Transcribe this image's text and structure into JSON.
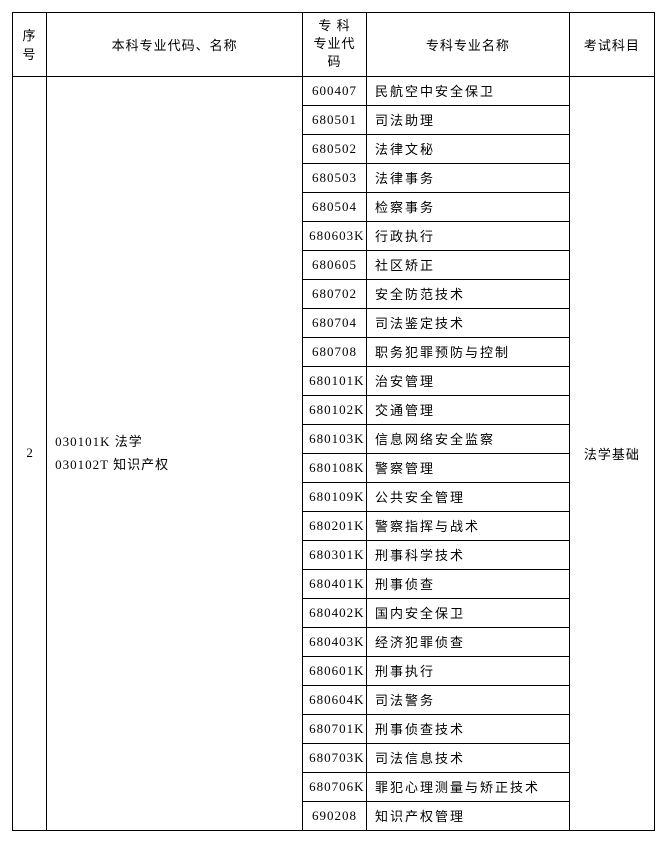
{
  "headers": {
    "seq": "序号",
    "major": "本科专业代码、名称",
    "code": "专 科\n专业代码",
    "name": "专科专业名称",
    "exam": "考试科目"
  },
  "group": {
    "seq": "2",
    "major": "030101K 法学\n030102T 知识产权",
    "exam": "法学基础"
  },
  "rows": [
    {
      "code": "600407",
      "name": "民航空中安全保卫"
    },
    {
      "code": "680501",
      "name": "司法助理"
    },
    {
      "code": "680502",
      "name": "法律文秘"
    },
    {
      "code": "680503",
      "name": "法律事务"
    },
    {
      "code": "680504",
      "name": "检察事务"
    },
    {
      "code": "680603K",
      "name": "行政执行"
    },
    {
      "code": "680605",
      "name": "社区矫正"
    },
    {
      "code": "680702",
      "name": "安全防范技术"
    },
    {
      "code": "680704",
      "name": "司法鉴定技术"
    },
    {
      "code": "680708",
      "name": "职务犯罪预防与控制"
    },
    {
      "code": "680101K",
      "name": "治安管理"
    },
    {
      "code": "680102K",
      "name": "交通管理"
    },
    {
      "code": "680103K",
      "name": "信息网络安全监察"
    },
    {
      "code": "680108K",
      "name": "警察管理"
    },
    {
      "code": "680109K",
      "name": "公共安全管理"
    },
    {
      "code": "680201K",
      "name": "警察指挥与战术"
    },
    {
      "code": "680301K",
      "name": "刑事科学技术"
    },
    {
      "code": "680401K",
      "name": "刑事侦查"
    },
    {
      "code": "680402K",
      "name": "国内安全保卫"
    },
    {
      "code": "680403K",
      "name": "经济犯罪侦查"
    },
    {
      "code": "680601K",
      "name": "刑事执行"
    },
    {
      "code": "680604K",
      "name": "司法警务"
    },
    {
      "code": "680701K",
      "name": "刑事侦查技术"
    },
    {
      "code": "680703K",
      "name": "司法信息技术"
    },
    {
      "code": "680706K",
      "name": "罪犯心理测量与矫正技术"
    },
    {
      "code": "690208",
      "name": "知识产权管理"
    }
  ]
}
